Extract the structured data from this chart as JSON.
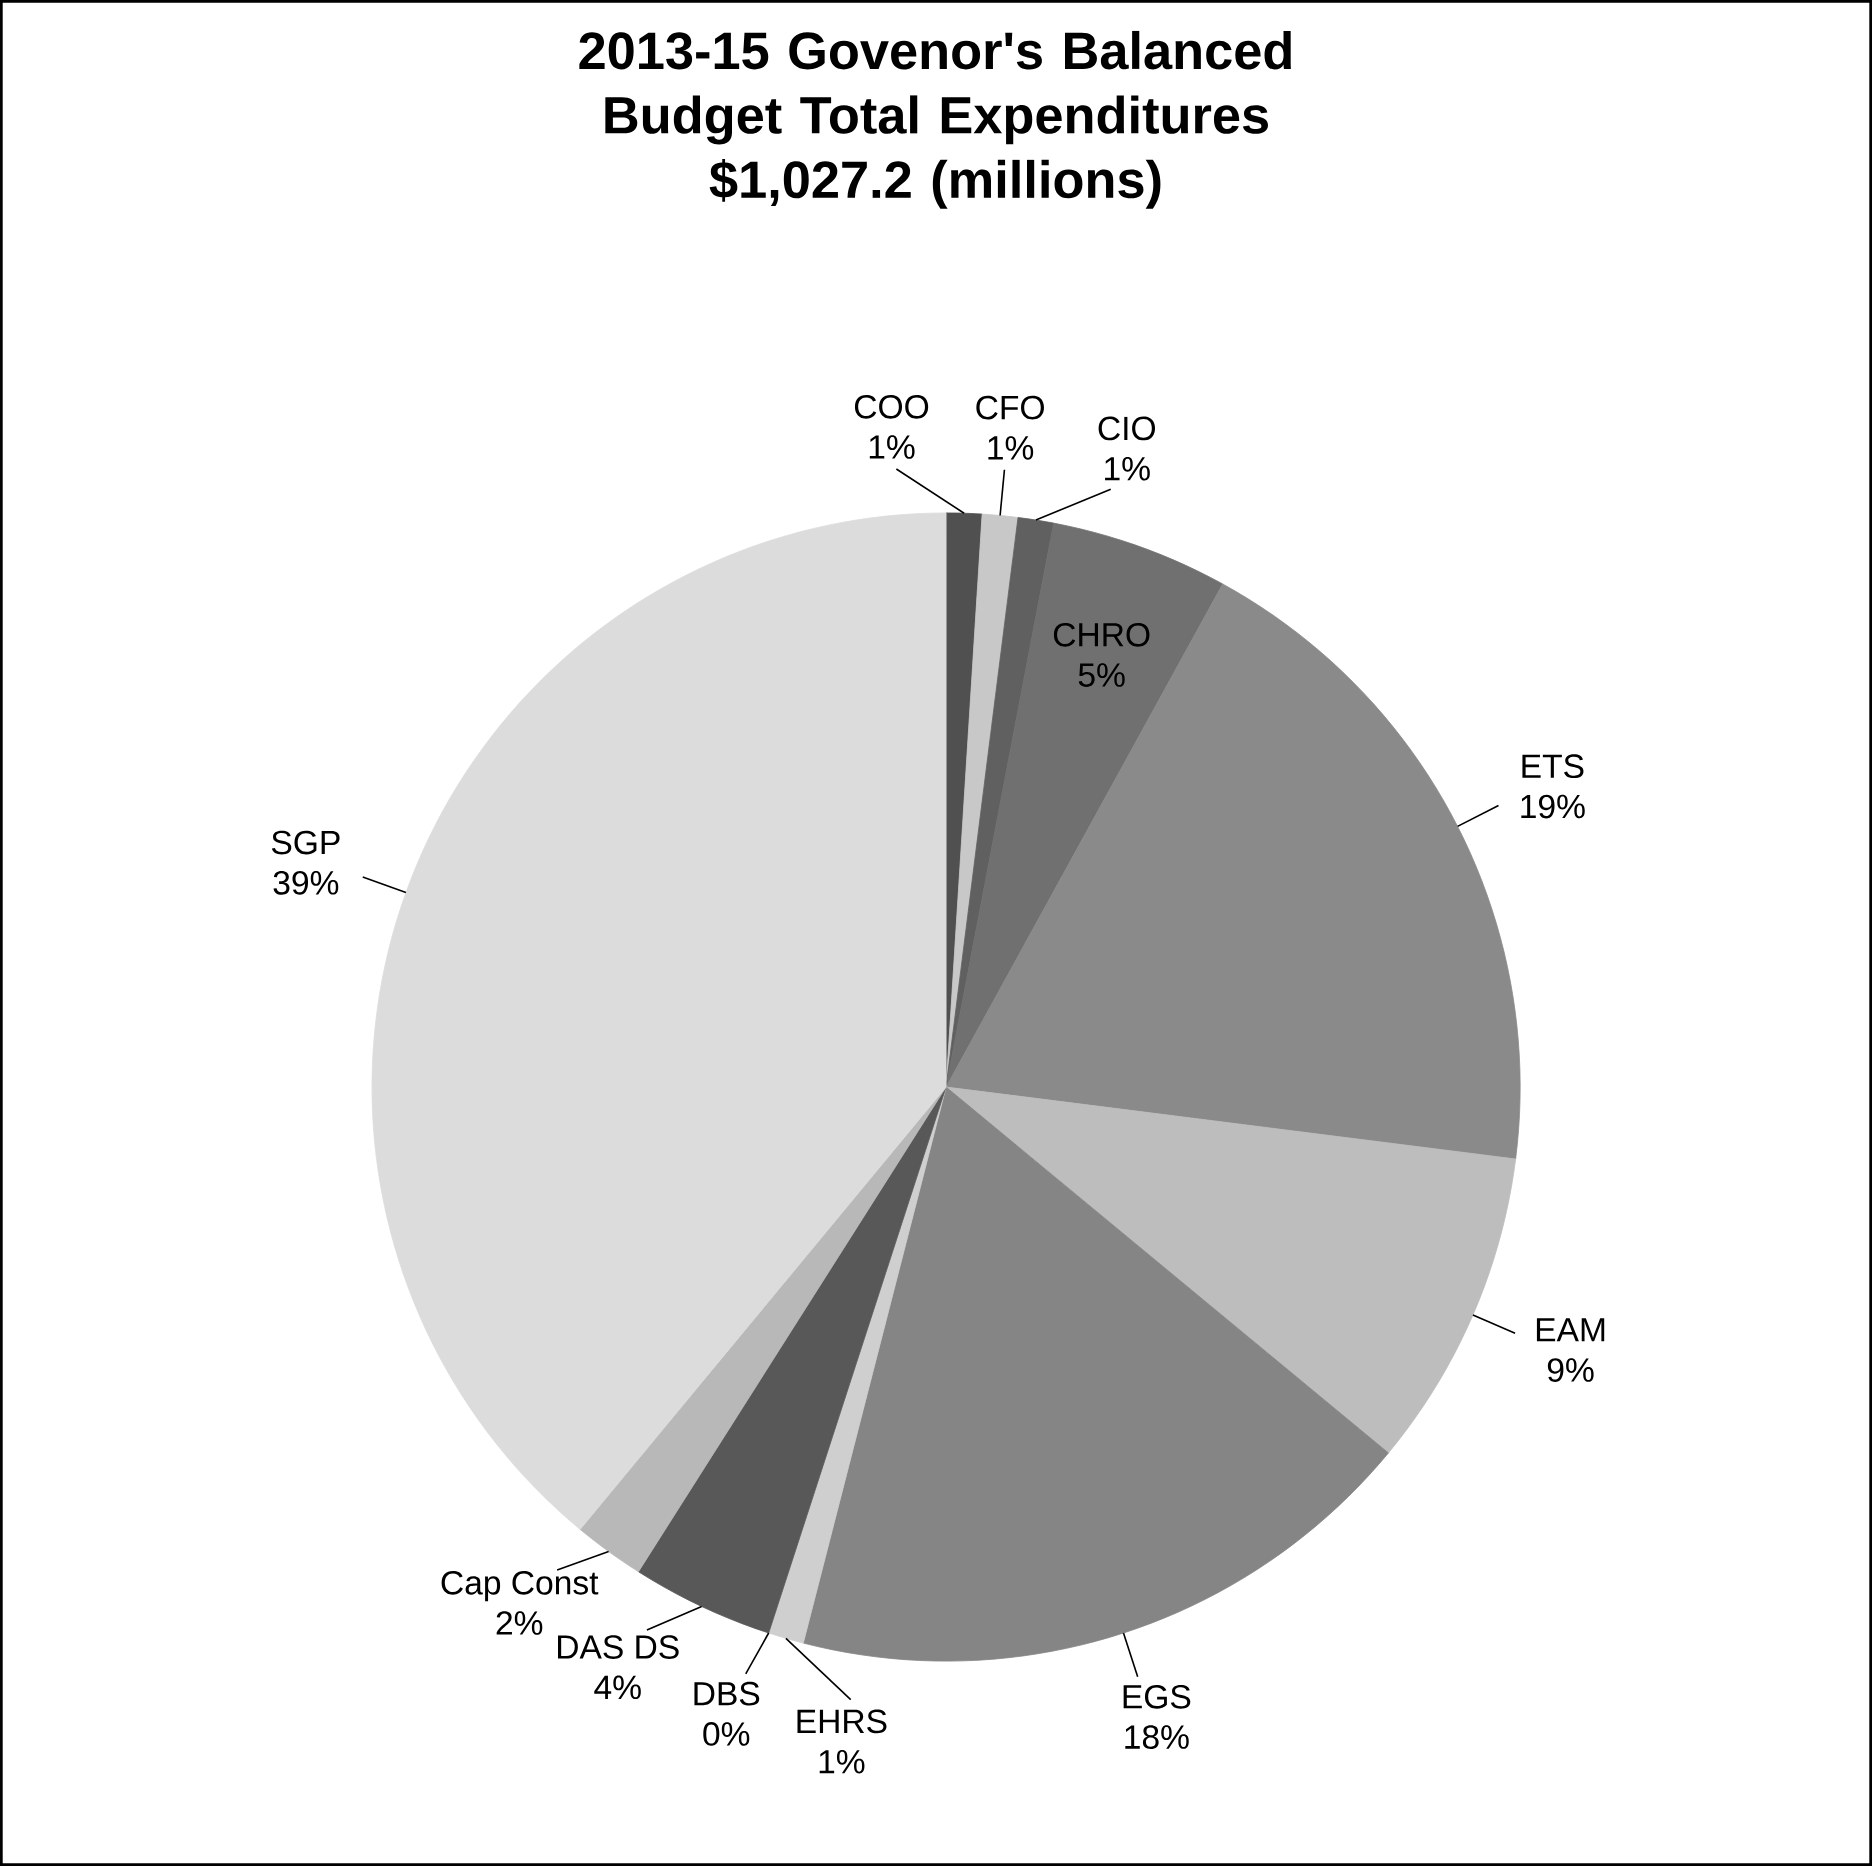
{
  "chart_data": {
    "type": "pie",
    "title": "2013-15 Govenor's Balanced Budget Total Expenditures",
    "subtitle": "$1,027.2 (millions)",
    "categories": [
      "COO",
      "CFO",
      "CIO",
      "CHRO",
      "ETS",
      "EAM",
      "EGS",
      "EHRS",
      "DBS",
      "DAS DS",
      "Cap Const",
      "SGP"
    ],
    "values": [
      1,
      1,
      1,
      5,
      19,
      9,
      18,
      1,
      0,
      4,
      2,
      39
    ],
    "value_labels": [
      "1%",
      "1%",
      "1%",
      "5%",
      "19%",
      "9%",
      "18%",
      "1%",
      "0%",
      "4%",
      "2%",
      "39%"
    ],
    "colors": [
      "#505050",
      "#c8c8c8",
      "#606060",
      "#707070",
      "#8a8a8a",
      "#bdbdbd",
      "#858585",
      "#cfcfcf",
      "#999999",
      "#585858",
      "#b8b8b8",
      "#dcdcdc"
    ]
  }
}
